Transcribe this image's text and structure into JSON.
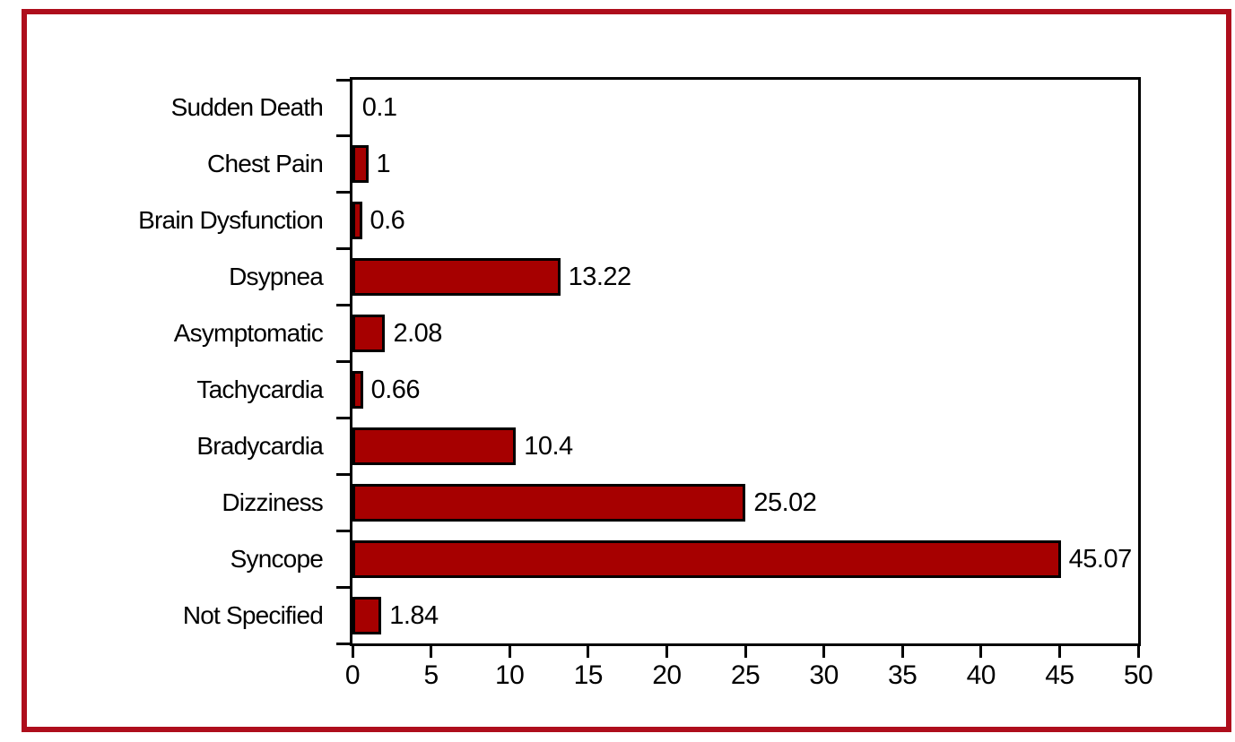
{
  "chart_data": {
    "type": "bar",
    "orientation": "horizontal",
    "title": "",
    "xlabel": "",
    "ylabel": "",
    "categories": [
      "Sudden Death",
      "Chest Pain",
      "Brain Dysfunction",
      "Dsypnea",
      "Asymptomatic",
      "Tachycardia",
      "Bradycardia",
      "Dizziness",
      "Syncope",
      "Not Specified"
    ],
    "values": [
      0.1,
      1,
      0.6,
      13.22,
      2.08,
      0.66,
      10.4,
      25.02,
      45.07,
      1.84
    ],
    "value_labels": [
      "0.1",
      "1",
      "0.6",
      "13.22",
      "2.08",
      "0.66",
      "10.4",
      "25.02",
      "45.07",
      "1.84"
    ],
    "xlim": [
      0,
      50
    ],
    "x_ticks": [
      0,
      5,
      10,
      15,
      20,
      25,
      30,
      35,
      40,
      45,
      50
    ],
    "grid": false,
    "legend": false,
    "colors": {
      "bar_fill": "#a60000",
      "bar_border": "#000000",
      "axis": "#000000",
      "text": "#000000",
      "outer_frame": "#ae0e1c",
      "background": "#ffffff"
    }
  }
}
